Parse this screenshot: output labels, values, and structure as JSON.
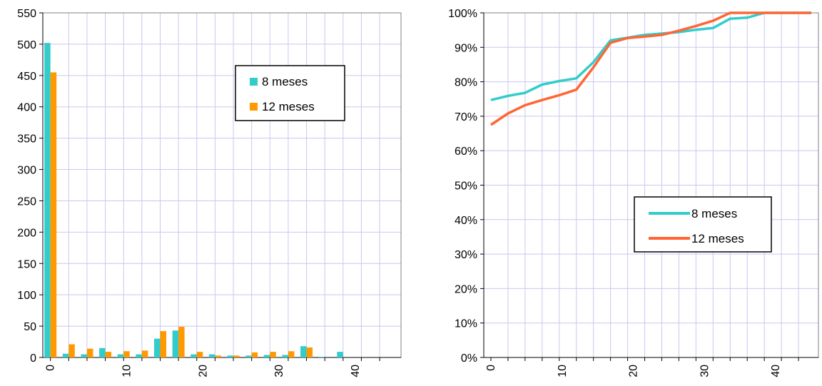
{
  "chart_data": [
    {
      "type": "bar",
      "title": "",
      "xlabel": "",
      "ylabel": "",
      "ylim": [
        0,
        550
      ],
      "xlim": [
        -1,
        46
      ],
      "yticks": [
        "0",
        "50",
        "100",
        "150",
        "200",
        "250",
        "300",
        "350",
        "400",
        "450",
        "500",
        "550"
      ],
      "xticks": [
        "0",
        "10",
        "20",
        "30",
        "40"
      ],
      "grid": true,
      "legend_position": "top-right",
      "categories": [
        0,
        2.4,
        4.8,
        7.2,
        9.6,
        12,
        14.4,
        16.8,
        19.2,
        21.6,
        24,
        26.4,
        28.8,
        31.2,
        33.6,
        36,
        38.4,
        40.8,
        43.2
      ],
      "series": [
        {
          "name": "8 meses",
          "color": "#33cccc",
          "values": [
            502,
            6,
            5,
            15,
            5,
            5,
            30,
            43,
            5,
            5,
            3,
            3,
            4,
            4,
            18,
            1,
            9,
            0,
            0
          ]
        },
        {
          "name": "12 meses",
          "color": "#ff9900",
          "values": [
            455,
            21,
            14,
            9,
            10,
            11,
            42,
            49,
            9,
            3,
            3,
            8,
            9,
            10,
            16,
            0,
            0,
            0,
            0
          ]
        }
      ]
    },
    {
      "type": "line",
      "title": "",
      "xlabel": "",
      "ylabel": "",
      "ylim": [
        0,
        100
      ],
      "xlim": [
        -1,
        46
      ],
      "yticks": [
        "0%",
        "10%",
        "20%",
        "30%",
        "40%",
        "50%",
        "60%",
        "70%",
        "80%",
        "90%",
        "100%"
      ],
      "xticks": [
        "0",
        "10",
        "20",
        "30",
        "40"
      ],
      "grid": true,
      "legend_position": "center-right",
      "series": [
        {
          "name": "8 meses",
          "color": "#33cccc",
          "x": [
            0,
            2.4,
            4.8,
            7.2,
            9.6,
            12,
            14.4,
            16.8,
            19.2,
            21.6,
            24,
            26.4,
            28.8,
            31.2,
            33.6,
            36,
            38.4,
            40.8,
            43.2,
            45
          ],
          "y": [
            74.7,
            75.9,
            76.8,
            79.2,
            80.2,
            81,
            85.7,
            92,
            92.8,
            93.6,
            94,
            94.4,
            95.1,
            95.6,
            98.3,
            98.6,
            100,
            100,
            100,
            100
          ]
        },
        {
          "name": "12 meses",
          "color": "#ff6633",
          "x": [
            0,
            2.4,
            4.8,
            7.2,
            9.6,
            12,
            14.4,
            16.8,
            19.2,
            21.6,
            24,
            26.4,
            28.8,
            31.2,
            33.6,
            36,
            38.4,
            40.8,
            43.2,
            45
          ],
          "y": [
            67.5,
            70.8,
            73.2,
            74.7,
            76.1,
            77.7,
            84.2,
            91.3,
            92.7,
            93.1,
            93.6,
            94.8,
            96.2,
            97.7,
            100,
            100,
            100,
            100,
            100,
            100
          ]
        }
      ]
    }
  ]
}
